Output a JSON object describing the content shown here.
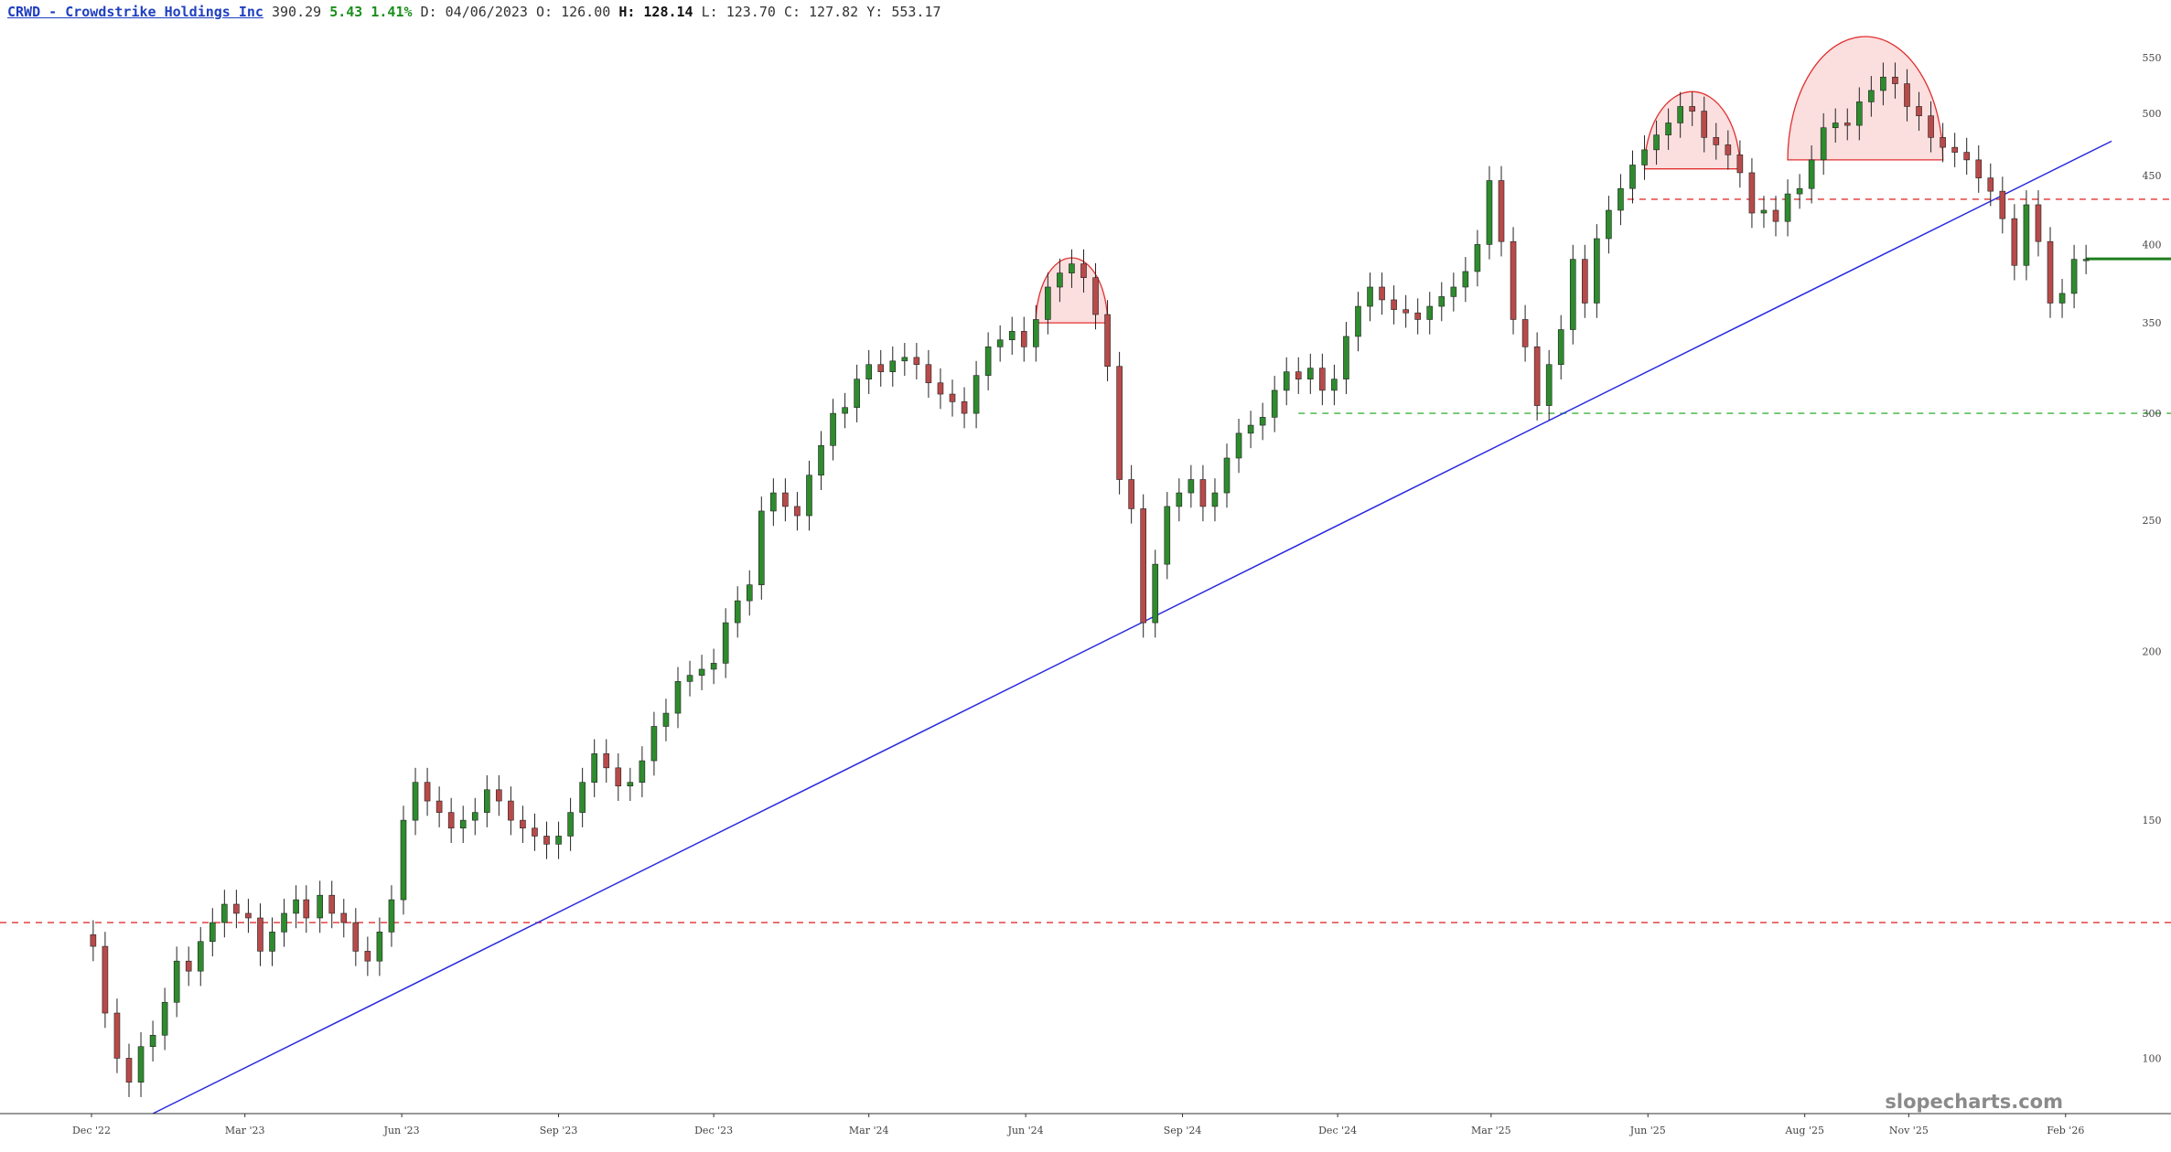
{
  "header": {
    "symbol": "CRWD - Crowdstrike Holdings Inc",
    "last": "390.29",
    "change": "5.43",
    "change_pct": "1.41%",
    "d_label": "D:",
    "date": "04/06/2023",
    "o_label": "O:",
    "open": "126.00",
    "h_label": "H:",
    "high": "128.14",
    "l_label": "L:",
    "low": "123.70",
    "c_label": "C:",
    "close": "127.82",
    "y_label": "Y:",
    "ytd": "553.17"
  },
  "watermark": "slopecharts.com",
  "colors": {
    "up": "#2e8b2e",
    "down": "#b84a4a",
    "trendline": "#2a2ae0",
    "resistance": "#e23030",
    "support": "#3cb43c",
    "dome_fill": "#f7c3c3",
    "dome_stroke": "#e03030",
    "current_price": "#1e7e1e"
  },
  "chart_data": {
    "type": "line",
    "subtype": "candlestick",
    "y_scale": "log",
    "ylim": [
      91,
      570
    ],
    "x_tick_labels": [
      "Dec '22",
      "Mar '23",
      "Jun '23",
      "Sep '23",
      "Dec '23",
      "Mar '24",
      "Jun '24",
      "Sep '24",
      "Dec '24",
      "Mar '25",
      "Jun '25",
      "Aug '25",
      "Nov '25",
      "Feb '26"
    ],
    "y_tick_labels": [
      "100",
      "150",
      "200",
      "250",
      "300",
      "350",
      "400",
      "450",
      "500",
      "550"
    ],
    "y_ticks": [
      100,
      150,
      200,
      250,
      300,
      350,
      400,
      450,
      500,
      550
    ],
    "series": [
      {
        "x": [
          "2022-12-02",
          "2022-12-09",
          "2022-12-16",
          "2022-12-23",
          "2022-12-30",
          "2023-01-06",
          "2023-01-13",
          "2023-01-20",
          "2023-01-27",
          "2023-02-03",
          "2023-02-10",
          "2023-02-17",
          "2023-02-24",
          "2023-03-03",
          "2023-03-10",
          "2023-03-17",
          "2023-03-24",
          "2023-03-31",
          "2023-04-06",
          "2023-04-14",
          "2023-04-21",
          "2023-04-28",
          "2023-05-05",
          "2023-05-12",
          "2023-05-19",
          "2023-05-26",
          "2023-06-02",
          "2023-06-09",
          "2023-06-16",
          "2023-06-23",
          "2023-06-30",
          "2023-07-07",
          "2023-07-14",
          "2023-07-21",
          "2023-07-28",
          "2023-08-04",
          "2023-08-11",
          "2023-08-18",
          "2023-08-25",
          "2023-09-01",
          "2023-09-08",
          "2023-09-15",
          "2023-09-22",
          "2023-09-29",
          "2023-10-06",
          "2023-10-13",
          "2023-10-20",
          "2023-10-27",
          "2023-11-03",
          "2023-11-10",
          "2023-11-17",
          "2023-11-24",
          "2023-12-01",
          "2023-12-08",
          "2023-12-15",
          "2023-12-22",
          "2023-12-29",
          "2024-01-05",
          "2024-01-12",
          "2024-01-19",
          "2024-01-26",
          "2024-02-02",
          "2024-02-09",
          "2024-02-16",
          "2024-02-23",
          "2024-03-01",
          "2024-03-08",
          "2024-03-15",
          "2024-03-22",
          "2024-03-29",
          "2024-04-05",
          "2024-04-12",
          "2024-04-19",
          "2024-04-26",
          "2024-05-03",
          "2024-05-10",
          "2024-05-17",
          "2024-05-24",
          "2024-05-31",
          "2024-06-07",
          "2024-06-14",
          "2024-06-21",
          "2024-06-28",
          "2024-07-05",
          "2024-07-12",
          "2024-07-19",
          "2024-07-26",
          "2024-08-02",
          "2024-08-09",
          "2024-08-16",
          "2024-08-23",
          "2024-08-30",
          "2024-09-06",
          "2024-09-13",
          "2024-09-20",
          "2024-09-27",
          "2024-10-04",
          "2024-10-11",
          "2024-10-18",
          "2024-10-25",
          "2024-11-01",
          "2024-11-08",
          "2024-11-15",
          "2024-11-22",
          "2024-11-29",
          "2024-12-06",
          "2024-12-13",
          "2024-12-20",
          "2024-12-27",
          "2025-01-03",
          "2025-01-10",
          "2025-01-17",
          "2025-01-24",
          "2025-01-31",
          "2025-02-07",
          "2025-02-14",
          "2025-02-21",
          "2025-02-28",
          "2025-03-07",
          "2025-03-14",
          "2025-03-21",
          "2025-03-28",
          "2025-04-04",
          "2025-04-11",
          "2025-04-18",
          "2025-04-25",
          "2025-05-02",
          "2025-05-09",
          "2025-05-16",
          "2025-05-23",
          "2025-05-30",
          "2025-06-06",
          "2025-06-13",
          "2025-06-20",
          "2025-06-27",
          "2025-07-04",
          "2025-07-11",
          "2025-07-18",
          "2025-07-25",
          "2025-08-01",
          "2025-08-08",
          "2025-08-15",
          "2025-08-22",
          "2025-08-29",
          "2025-09-05",
          "2025-09-12",
          "2025-09-19",
          "2025-09-26",
          "2025-10-03",
          "2025-10-10",
          "2025-10-17",
          "2025-10-24",
          "2025-10-31",
          "2025-11-07",
          "2025-11-14",
          "2025-11-21",
          "2025-11-28",
          "2025-12-05",
          "2025-12-12",
          "2025-12-19",
          "2025-12-26",
          "2026-01-02",
          "2026-01-09",
          "2026-01-16",
          "2026-01-23",
          "2026-01-30",
          "2026-02-06",
          "2026-02-13"
        ],
        "y": [
          121,
          108,
          100,
          96,
          102,
          104,
          110,
          118,
          116,
          122,
          126,
          130,
          128,
          127,
          120,
          124,
          128,
          131,
          127,
          132,
          128,
          126,
          120,
          118,
          124,
          131,
          150,
          160,
          155,
          152,
          148,
          150,
          152,
          158,
          155,
          150,
          148,
          146,
          144,
          146,
          152,
          160,
          168,
          164,
          159,
          160,
          166,
          176,
          180,
          190,
          192,
          194,
          196,
          210,
          218,
          224,
          254,
          262,
          256,
          252,
          270,
          284,
          300,
          303,
          318,
          326,
          322,
          328,
          330,
          326,
          316,
          310,
          306,
          300,
          320,
          336,
          340,
          345,
          336,
          352,
          372,
          381,
          387,
          378,
          355,
          325,
          268,
          255,
          210,
          232,
          256,
          262,
          268,
          256,
          262,
          278,
          290,
          294,
          298,
          312,
          322,
          318,
          324,
          312,
          318,
          342,
          360,
          372,
          364,
          358,
          356,
          352,
          360,
          366,
          372,
          382,
          400,
          446,
          402,
          352,
          336,
          304,
          326,
          346,
          390,
          362,
          404,
          424,
          440,
          458,
          470,
          482,
          492,
          506,
          502,
          480,
          474,
          466,
          452,
          422,
          424,
          416,
          436,
          440,
          462,
          488,
          492,
          490,
          510,
          520,
          532,
          526,
          506,
          498,
          480,
          472,
          468,
          462,
          448,
          438,
          418,
          386,
          428,
          402,
          362,
          368,
          390,
          390
        ]
      }
    ],
    "annotations": {
      "resistance_levels": [
        126,
        432
      ],
      "support_level": 300,
      "current_price_level": 390.29,
      "trendline": {
        "from": {
          "x": "2023-01-06",
          "y": 91
        },
        "to": {
          "x": "2026-02-28",
          "y": 477
        }
      },
      "rounded_tops": [
        {
          "x_start": "2024-06-07",
          "x_end": "2024-07-19",
          "base": 350,
          "peak": 391
        },
        {
          "x_start": "2025-05-30",
          "x_end": "2025-07-25",
          "base": 455,
          "peak": 519
        },
        {
          "x_start": "2025-08-22",
          "x_end": "2025-11-21",
          "base": 462,
          "peak": 570
        }
      ]
    }
  }
}
